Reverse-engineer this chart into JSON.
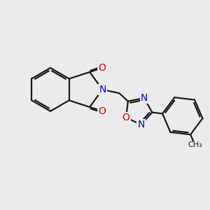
{
  "bg_color": "#ebebeb",
  "bond_color": "#1a1a1a",
  "bond_width": 1.6,
  "N_color": "#0000ee",
  "O_color": "#dd0000",
  "font_size": 10,
  "fig_size": [
    3.0,
    3.0
  ],
  "dpi": 100,
  "xlim": [
    0,
    10
  ],
  "ylim": [
    0,
    10
  ]
}
